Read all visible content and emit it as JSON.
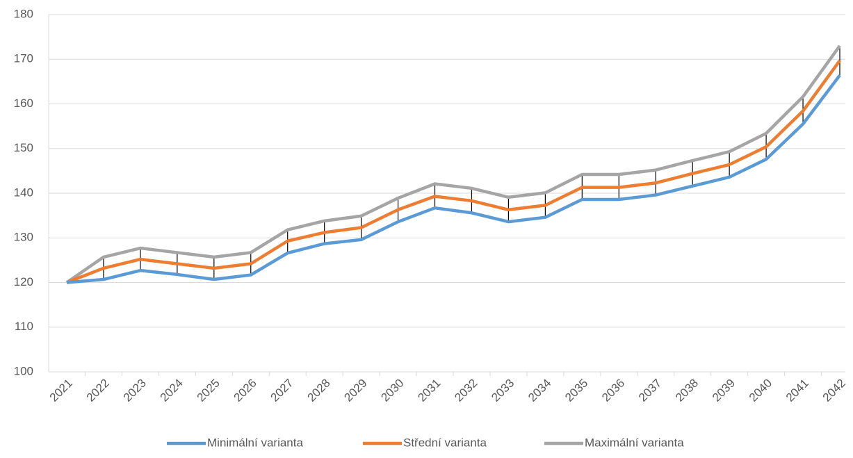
{
  "chart_data": {
    "type": "line",
    "categories": [
      "2021",
      "2022",
      "2023",
      "2024",
      "2025",
      "2026",
      "2027",
      "2028",
      "2029",
      "2030",
      "2031",
      "2032",
      "2033",
      "2034",
      "2035",
      "2036",
      "2037",
      "2038",
      "2039",
      "2040",
      "2041",
      "2042"
    ],
    "series": [
      {
        "name": "Minimální varianta",
        "color": "#5b9bd5",
        "values": [
          120,
          120.7,
          122.7,
          121.8,
          120.7,
          121.7,
          126.6,
          128.7,
          129.6,
          133.6,
          136.7,
          135.6,
          133.6,
          134.6,
          138.6,
          138.6,
          139.6,
          141.6,
          143.6,
          147.6,
          155.5,
          166.4
        ]
      },
      {
        "name": "Střední varianta",
        "color": "#ed7d31",
        "values": [
          120,
          123.2,
          125.2,
          124.2,
          123.2,
          124.2,
          129.3,
          131.2,
          132.3,
          136.3,
          139.3,
          138.3,
          136.3,
          137.3,
          141.3,
          141.3,
          142.3,
          144.4,
          146.4,
          150.4,
          158.4,
          169.7
        ]
      },
      {
        "name": "Maximální varianta",
        "color": "#a5a5a5",
        "values": [
          120,
          125.7,
          127.7,
          126.7,
          125.7,
          126.7,
          131.8,
          133.8,
          134.9,
          138.9,
          142.1,
          141.1,
          139.1,
          140.1,
          144.2,
          144.2,
          145.2,
          147.3,
          149.3,
          153.4,
          161.6,
          173
        ]
      }
    ],
    "ylim": [
      100,
      180
    ],
    "yticks": [
      100,
      110,
      120,
      130,
      140,
      150,
      160,
      170,
      180
    ],
    "grid": true,
    "legend": "bottom"
  }
}
